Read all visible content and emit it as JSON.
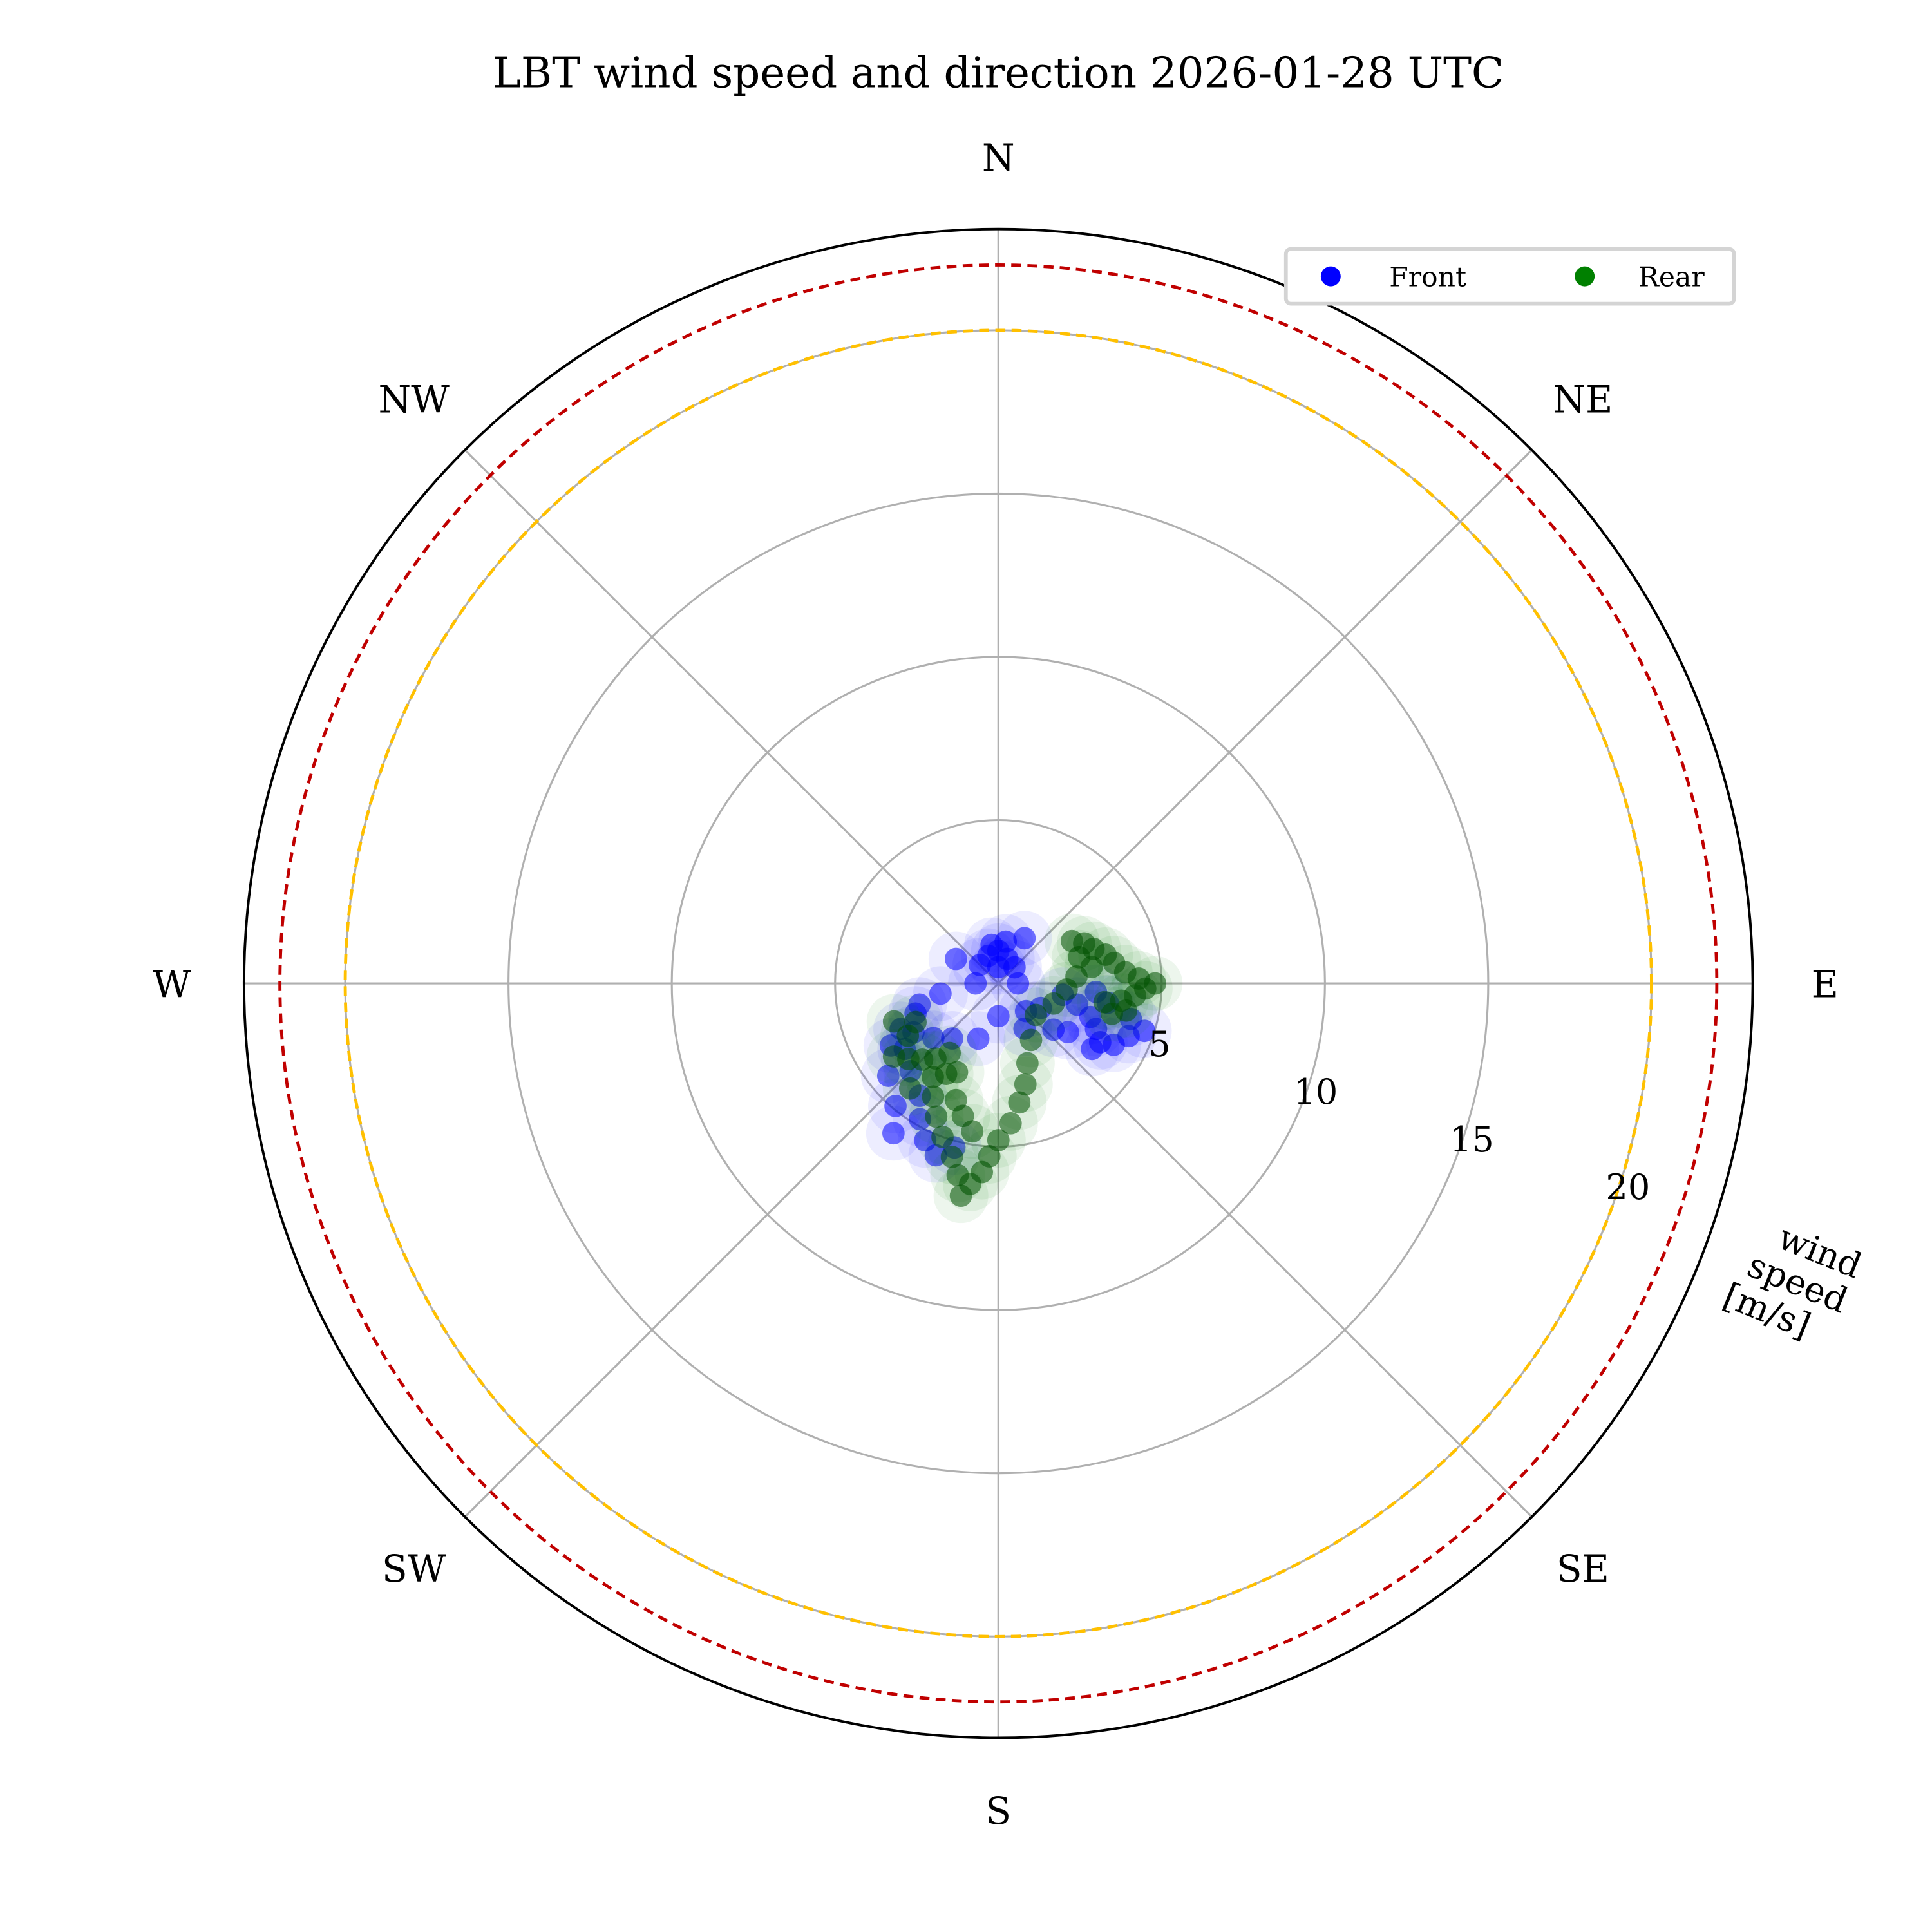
{
  "chart_data": {
    "type": "scatter",
    "projection": "polar",
    "title": "LBT wind speed and direction 2026-01-28 UTC",
    "radial_label": [
      "wind",
      "speed",
      "[m/s]"
    ],
    "direction_labels": [
      "N",
      "NE",
      "E",
      "SE",
      "S",
      "SW",
      "W",
      "NW"
    ],
    "direction_angles_deg": [
      0,
      45,
      90,
      135,
      180,
      225,
      270,
      315
    ],
    "radial_ticks": [
      5,
      10,
      15,
      20
    ],
    "radial_tick_labels": [
      "5",
      "10",
      "15",
      "20"
    ],
    "rlim": [
      0,
      23.1
    ],
    "grid": true,
    "reference_circles": [
      {
        "speed": 20,
        "color": "#ffc000",
        "style": "dashed"
      },
      {
        "speed": 22,
        "color": "#c00000",
        "style": "dashed"
      }
    ],
    "legend": {
      "placement": "top-right",
      "entries": [
        "Front",
        "Rear"
      ]
    },
    "series": [
      {
        "name": "Front",
        "color": "#0000ff",
        "points": [
          [
            0,
            0.5
          ],
          [
            0,
            1.0
          ],
          [
            10,
            1.3
          ],
          [
            350,
            1.2
          ],
          [
            20,
            0.8
          ],
          [
            340,
            0.9
          ],
          [
            45,
            0.7
          ],
          [
            315,
            0.8
          ],
          [
            90,
            0.6
          ],
          [
            270,
            0.7
          ],
          [
            135,
            1.2
          ],
          [
            150,
            1.6
          ],
          [
            120,
            1.5
          ],
          [
            180,
            1.0
          ],
          [
            200,
            1.8
          ],
          [
            220,
            2.2
          ],
          [
            230,
            2.6
          ],
          [
            240,
            3.0
          ],
          [
            245,
            3.3
          ],
          [
            250,
            2.7
          ],
          [
            235,
            3.5
          ],
          [
            225,
            3.8
          ],
          [
            215,
            4.2
          ],
          [
            210,
            4.8
          ],
          [
            205,
            5.3
          ],
          [
            200,
            5.6
          ],
          [
            195,
            5.2
          ],
          [
            215,
            5.6
          ],
          [
            220,
            4.9
          ],
          [
            230,
            4.4
          ],
          [
            240,
            3.8
          ],
          [
            255,
            2.5
          ],
          [
            260,
            1.8
          ],
          [
            100,
            2.0
          ],
          [
            105,
            2.5
          ],
          [
            110,
            3.0
          ],
          [
            115,
            3.3
          ],
          [
            120,
            3.6
          ],
          [
            125,
            3.5
          ],
          [
            118,
            4.0
          ],
          [
            112,
            4.3
          ],
          [
            108,
            4.7
          ],
          [
            105,
            4.2
          ],
          [
            100,
            3.4
          ],
          [
            95,
            3.0
          ],
          [
            125,
            2.6
          ],
          [
            130,
            2.2
          ],
          [
            300,
            1.5
          ],
          [
            30,
            1.6
          ]
        ]
      },
      {
        "name": "Rear",
        "color": "#008000",
        "points": [
          [
            60,
            2.6
          ],
          [
            65,
            2.9
          ],
          [
            70,
            3.1
          ],
          [
            72,
            2.6
          ],
          [
            75,
            3.4
          ],
          [
            80,
            3.6
          ],
          [
            85,
            3.9
          ],
          [
            88,
            4.3
          ],
          [
            90,
            4.8
          ],
          [
            92,
            4.5
          ],
          [
            95,
            4.2
          ],
          [
            98,
            3.8
          ],
          [
            100,
            3.3
          ],
          [
            102,
            4.0
          ],
          [
            105,
            3.6
          ],
          [
            80,
            2.9
          ],
          [
            85,
            2.4
          ],
          [
            95,
            2.1
          ],
          [
            110,
            1.8
          ],
          [
            130,
            1.5
          ],
          [
            150,
            2.0
          ],
          [
            160,
            2.6
          ],
          [
            165,
            3.2
          ],
          [
            170,
            3.7
          ],
          [
            175,
            4.3
          ],
          [
            180,
            4.8
          ],
          [
            183,
            5.3
          ],
          [
            185,
            5.8
          ],
          [
            188,
            6.2
          ],
          [
            190,
            6.6
          ],
          [
            192,
            6.0
          ],
          [
            195,
            5.5
          ],
          [
            200,
            5.0
          ],
          [
            205,
            4.5
          ],
          [
            210,
            4.0
          ],
          [
            215,
            3.5
          ],
          [
            220,
            3.0
          ],
          [
            225,
            3.3
          ],
          [
            230,
            3.6
          ],
          [
            235,
            3.9
          ],
          [
            240,
            3.2
          ],
          [
            245,
            2.8
          ],
          [
            250,
            3.4
          ],
          [
            210,
            3.2
          ],
          [
            200,
            3.8
          ],
          [
            205,
            3.0
          ],
          [
            215,
            2.6
          ],
          [
            195,
            4.2
          ],
          [
            190,
            4.6
          ],
          [
            220,
            4.2
          ]
        ]
      }
    ]
  }
}
